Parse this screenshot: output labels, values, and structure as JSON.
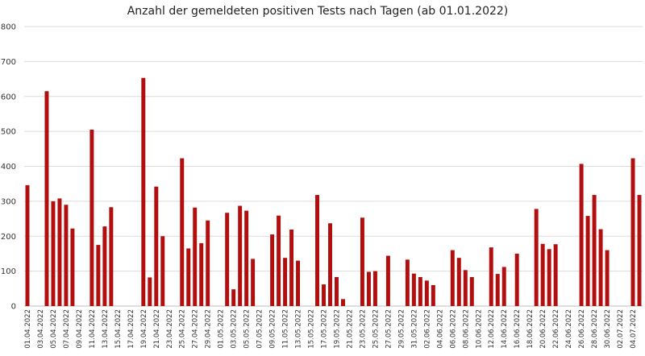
{
  "chart_data": {
    "type": "bar",
    "title": "Anzahl der gemeldeten positiven Tests nach Tagen (ab 01.01.2022)",
    "xlabel": "",
    "ylabel": "",
    "ylim": [
      0,
      800
    ],
    "yticks": [
      0,
      100,
      200,
      300,
      400,
      500,
      600,
      700,
      800
    ],
    "grid": true,
    "bar_color": "#b20e0e",
    "x_tick_labels": [
      "01.04.2022",
      "03.04.2022",
      "05.04.2022",
      "07.04.2022",
      "09.04.2022",
      "11.04.2022",
      "13.04.2022",
      "15.04.2022",
      "17.04.2022",
      "19.04.2022",
      "21.04.2022",
      "23.04.2022",
      "25.04.2022",
      "27.04.2022",
      "29.04.2022",
      "01.05.2022",
      "03.05.2022",
      "05.05.2022",
      "07.05.2022",
      "09.05.2022",
      "11.05.2022",
      "13.05.2022",
      "15.05.2022",
      "17.05.2022",
      "19.05.2022",
      "21.05.2022",
      "23.05.2022",
      "25.05.2022",
      "27.05.2022",
      "29.05.2022",
      "31.05.2022",
      "02.06.2022",
      "04.06.2022",
      "06.06.2022",
      "08.06.2022",
      "10.06.2022",
      "12.06.2022",
      "14.06.2022",
      "16.06.2022",
      "18.06.2022",
      "20.06.2022",
      "22.06.2022",
      "24.06.2022",
      "26.06.2022",
      "28.06.2022",
      "30.06.2022",
      "02.07.2022",
      "04.07.2022"
    ],
    "categories": [
      "01.04.2022",
      "02.04.2022",
      "03.04.2022",
      "04.04.2022",
      "05.04.2022",
      "06.04.2022",
      "07.04.2022",
      "08.04.2022",
      "09.04.2022",
      "10.04.2022",
      "11.04.2022",
      "12.04.2022",
      "13.04.2022",
      "14.04.2022",
      "15.04.2022",
      "16.04.2022",
      "17.04.2022",
      "18.04.2022",
      "19.04.2022",
      "20.04.2022",
      "21.04.2022",
      "22.04.2022",
      "23.04.2022",
      "24.04.2022",
      "25.04.2022",
      "26.04.2022",
      "27.04.2022",
      "28.04.2022",
      "29.04.2022",
      "30.04.2022",
      "01.05.2022",
      "02.05.2022",
      "03.05.2022",
      "04.05.2022",
      "05.05.2022",
      "06.05.2022",
      "07.05.2022",
      "08.05.2022",
      "09.05.2022",
      "10.05.2022",
      "11.05.2022",
      "12.05.2022",
      "13.05.2022",
      "14.05.2022",
      "15.05.2022",
      "16.05.2022",
      "17.05.2022",
      "18.05.2022",
      "19.05.2022",
      "20.05.2022",
      "21.05.2022",
      "22.05.2022",
      "23.05.2022",
      "24.05.2022",
      "25.05.2022",
      "26.05.2022",
      "27.05.2022",
      "28.05.2022",
      "29.05.2022",
      "30.05.2022",
      "31.05.2022",
      "01.06.2022",
      "02.06.2022",
      "03.06.2022",
      "04.06.2022",
      "05.06.2022",
      "06.06.2022",
      "07.06.2022",
      "08.06.2022",
      "09.06.2022",
      "10.06.2022",
      "11.06.2022",
      "12.06.2022",
      "13.06.2022",
      "14.06.2022",
      "15.06.2022",
      "16.06.2022",
      "17.06.2022",
      "18.06.2022",
      "19.06.2022",
      "20.06.2022",
      "21.06.2022",
      "22.06.2022",
      "23.06.2022",
      "24.06.2022",
      "25.06.2022",
      "26.06.2022",
      "27.06.2022",
      "28.06.2022",
      "29.06.2022",
      "30.06.2022",
      "01.07.2022",
      "02.07.2022",
      "03.07.2022",
      "04.07.2022",
      "05.07.2022"
    ],
    "values": [
      346,
      0,
      0,
      615,
      300,
      308,
      290,
      222,
      0,
      0,
      505,
      175,
      228,
      283,
      0,
      0,
      0,
      0,
      653,
      82,
      342,
      200,
      0,
      0,
      423,
      165,
      282,
      180,
      245,
      0,
      0,
      267,
      48,
      287,
      273,
      135,
      0,
      0,
      205,
      259,
      138,
      219,
      130,
      0,
      0,
      318,
      62,
      237,
      83,
      20,
      0,
      0,
      253,
      98,
      100,
      0,
      144,
      0,
      0,
      133,
      93,
      83,
      73,
      60,
      0,
      0,
      160,
      138,
      103,
      83,
      0,
      0,
      168,
      92,
      112,
      0,
      150,
      0,
      0,
      278,
      178,
      163,
      177,
      0,
      0,
      0,
      407,
      258,
      318,
      220,
      160,
      0,
      0,
      0,
      423,
      318
    ]
  }
}
